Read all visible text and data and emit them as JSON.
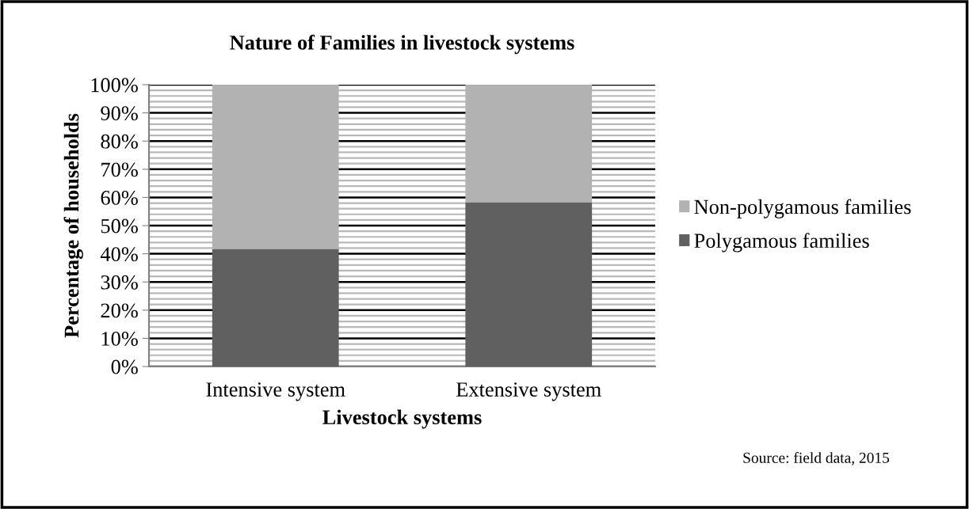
{
  "chart_data": {
    "type": "bar",
    "title": "Nature of Families in livestock systems",
    "xlabel": "Livestock systems",
    "ylabel": "Percentage of households",
    "categories": [
      "Intensive system",
      "Extensive system"
    ],
    "series": [
      {
        "name": "Polygamous families",
        "color": "#606060",
        "values": [
          41.7,
          58.3
        ]
      },
      {
        "name": "Non-polygamous families",
        "color": "#b2b2b2",
        "values": [
          58.3,
          41.7
        ]
      }
    ],
    "stacked": true,
    "ylim": [
      0,
      100
    ],
    "yticks": [
      {
        "value": 0,
        "label": "0%"
      },
      {
        "value": 10,
        "label": "10%"
      },
      {
        "value": 20,
        "label": "20%"
      },
      {
        "value": 30,
        "label": "30%"
      },
      {
        "value": 40,
        "label": "40%"
      },
      {
        "value": 50,
        "label": "50%"
      },
      {
        "value": 60,
        "label": "60%"
      },
      {
        "value": 70,
        "label": "70%"
      },
      {
        "value": 80,
        "label": "80%"
      },
      {
        "value": 90,
        "label": "90%"
      },
      {
        "value": 100,
        "label": "100%"
      }
    ],
    "grid": "y",
    "legend": "right",
    "annotations": [
      "Source: field data, 2015"
    ]
  }
}
